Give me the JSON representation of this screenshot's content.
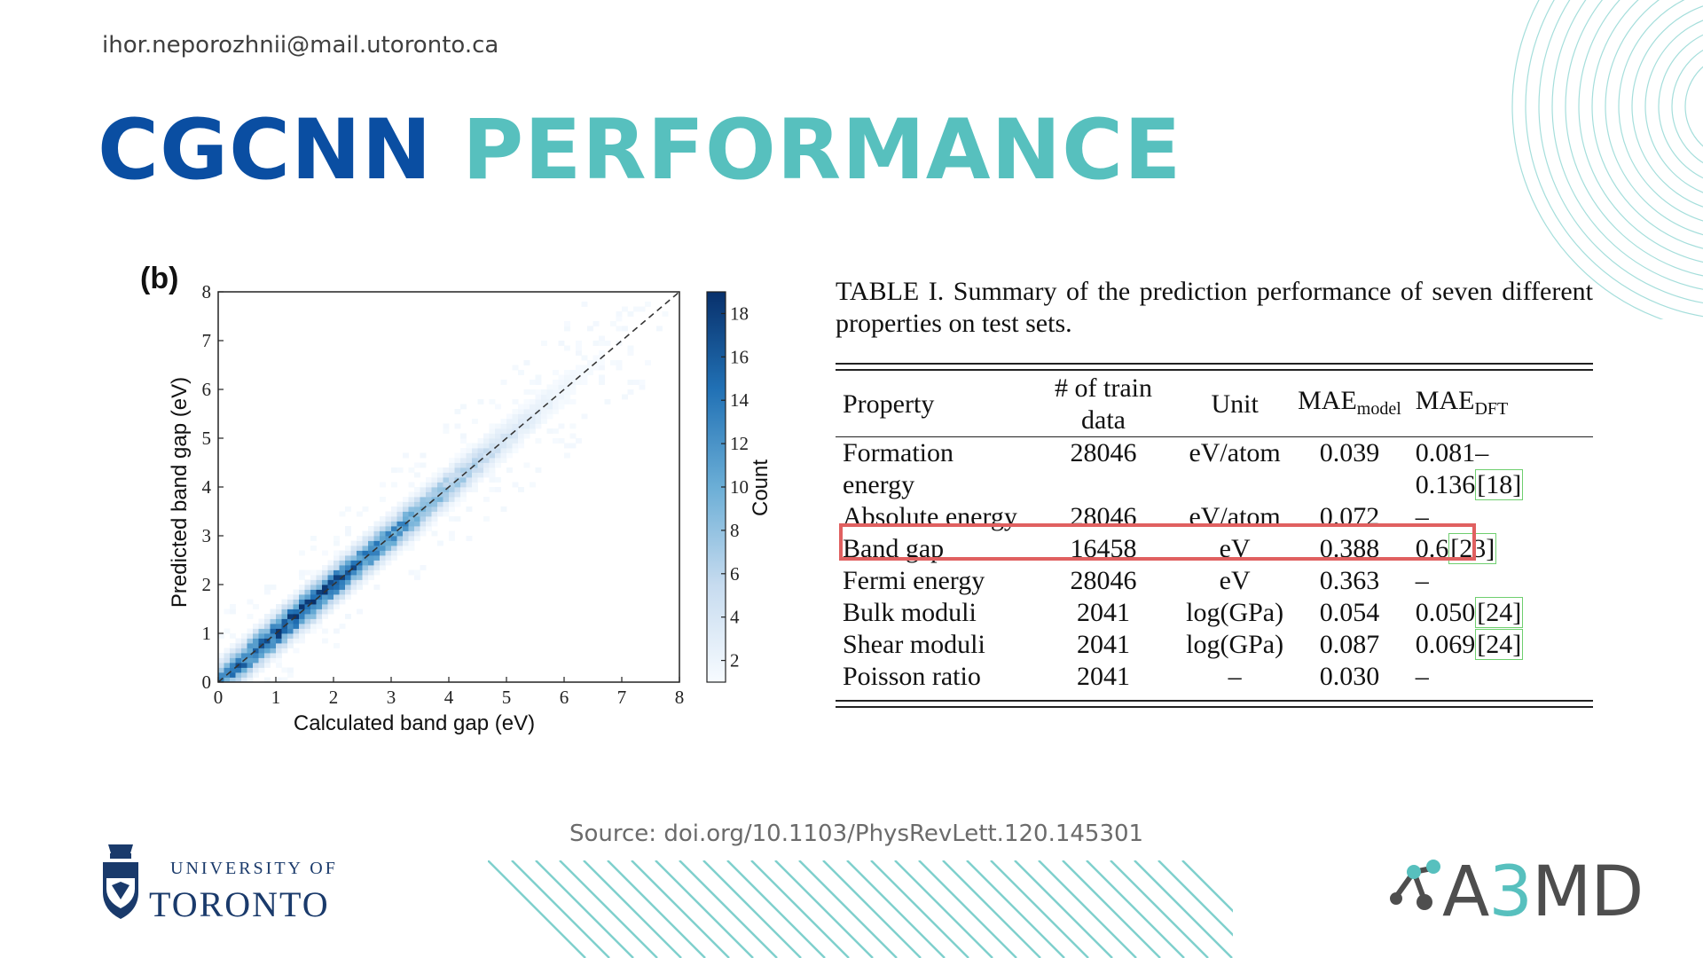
{
  "header": {
    "email": "ihor.neporozhnii@mail.utoronto.ca",
    "title_part1": "CGCNN",
    "title_part2": "PERFORMANCE"
  },
  "colors": {
    "title_blue": "#0a4ea2",
    "title_teal": "#57c0be",
    "highlight": "#e06060",
    "ref_box": "#6fcf6f",
    "heatmap_dark": "#08306b"
  },
  "chart_data": {
    "type": "heatmap",
    "panel_label": "(b)",
    "xlabel": "Calculated band gap (eV)",
    "ylabel": "Predicted band gap (eV)",
    "xlim": [
      0,
      8
    ],
    "ylim": [
      0,
      8
    ],
    "xticks": [
      "0",
      "1",
      "2",
      "3",
      "4",
      "5",
      "6",
      "7",
      "8"
    ],
    "yticks": [
      "0",
      "1",
      "2",
      "3",
      "4",
      "5",
      "6",
      "7",
      "8"
    ],
    "colorbar_label": "Count",
    "colorbar_range": [
      1,
      19
    ],
    "colorbar_ticks": [
      "2",
      "4",
      "6",
      "8",
      "10",
      "12",
      "14",
      "16",
      "18"
    ],
    "reference_line": "y = x (dashed)",
    "grid": false,
    "density_profile": [
      {
        "x": 0.25,
        "peak_count": 14
      },
      {
        "x": 0.75,
        "peak_count": 17
      },
      {
        "x": 1.25,
        "peak_count": 18
      },
      {
        "x": 1.75,
        "peak_count": 18
      },
      {
        "x": 2.25,
        "peak_count": 16
      },
      {
        "x": 2.75,
        "peak_count": 14
      },
      {
        "x": 3.25,
        "peak_count": 12
      },
      {
        "x": 3.75,
        "peak_count": 9
      },
      {
        "x": 4.25,
        "peak_count": 7
      },
      {
        "x": 4.75,
        "peak_count": 5
      },
      {
        "x": 5.25,
        "peak_count": 3
      },
      {
        "x": 5.75,
        "peak_count": 2
      },
      {
        "x": 6.25,
        "peak_count": 1
      }
    ]
  },
  "table": {
    "caption": "TABLE I. Summary of the prediction performance of seven different properties on test sets.",
    "headers": {
      "property": "Property",
      "train": "# of train data",
      "unit": "Unit",
      "mae_model": "MAE",
      "mae_model_sub": "model",
      "mae_dft": "MAE",
      "mae_dft_sub": "DFT"
    },
    "rows": [
      {
        "property": "Formation energy",
        "train": "28046",
        "unit": "eV/atom",
        "mae_model": "0.039",
        "mae_dft": "0.081–0.136",
        "ref": "18"
      },
      {
        "property": "Absolute energy",
        "train": "28046",
        "unit": "eV/atom",
        "mae_model": "0.072",
        "mae_dft": "–",
        "ref": ""
      },
      {
        "property": "Band gap",
        "train": "16458",
        "unit": "eV",
        "mae_model": "0.388",
        "mae_dft": "0.6",
        "ref": "23"
      },
      {
        "property": "Fermi energy",
        "train": "28046",
        "unit": "eV",
        "mae_model": "0.363",
        "mae_dft": "–",
        "ref": ""
      },
      {
        "property": "Bulk moduli",
        "train": "2041",
        "unit": "log(GPa)",
        "mae_model": "0.054",
        "mae_dft": "0.050",
        "ref": "24"
      },
      {
        "property": "Shear moduli",
        "train": "2041",
        "unit": "log(GPa)",
        "mae_model": "0.087",
        "mae_dft": "0.069",
        "ref": "24"
      },
      {
        "property": "Poisson ratio",
        "train": "2041",
        "unit": "–",
        "mae_model": "0.030",
        "mae_dft": "–",
        "ref": ""
      }
    ]
  },
  "source": "Source: doi.org/10.1103/PhysRevLett.120.145301",
  "logos": {
    "uoft_line1": "UNIVERSITY OF",
    "uoft_line2": "TORONTO",
    "a3md_a": "A",
    "a3md_3": "3",
    "a3md_md": "MD"
  }
}
